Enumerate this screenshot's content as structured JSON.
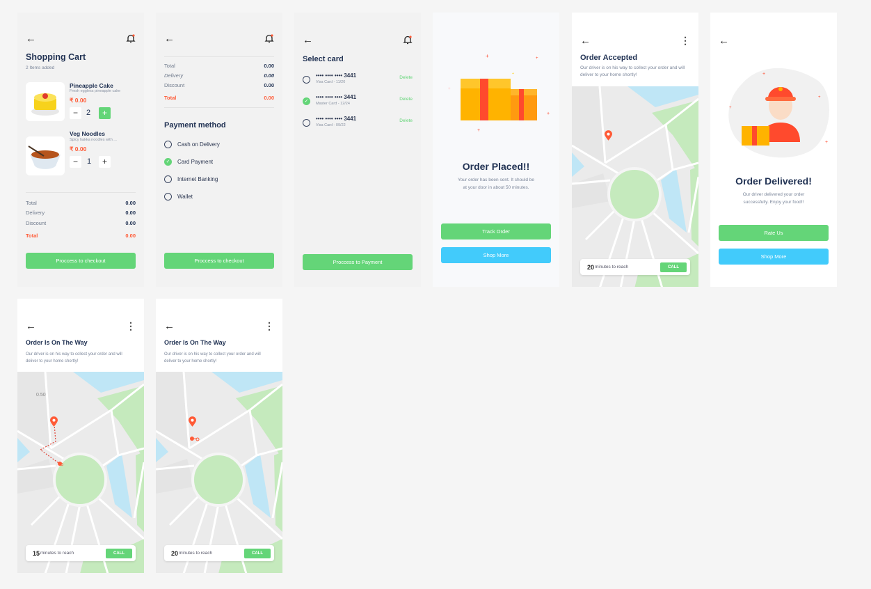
{
  "common": {
    "back": "←",
    "more": "⋮",
    "bell": "bell-icon"
  },
  "colors": {
    "accent_green": "#64d578",
    "accent_blue": "#42cbfb",
    "price_red": "#ff5a36",
    "text_dark": "#223354"
  },
  "cart": {
    "title": "Shopping Cart",
    "subtitle": "2 Items added",
    "items": [
      {
        "name": "Pineapple Cake",
        "desc": "Fresh eggless pineapple cake",
        "price": "₹ 0.00",
        "qty": "2"
      },
      {
        "name": "Veg Noodles",
        "desc": "Spicy hakka noodles with ...",
        "price": "₹ 0.00",
        "qty": "1"
      }
    ],
    "totals": [
      {
        "label": "Total",
        "value": "0.00"
      },
      {
        "label": "Delivery",
        "value": "0.00"
      },
      {
        "label": "Discount",
        "value": "0.00"
      },
      {
        "label": "Total",
        "value": "0.00"
      }
    ],
    "button": "Proccess to checkout",
    "minus": "−",
    "plus": "+"
  },
  "payment": {
    "totals": [
      {
        "label": "Total",
        "value": "0.00"
      },
      {
        "label": "Delivery",
        "value": "0.00"
      },
      {
        "label": "Discount",
        "value": "0.00"
      },
      {
        "label": "Total",
        "value": "0.00"
      }
    ],
    "title": "Payment method",
    "options": [
      "Cash on Delivery",
      "Card Payment",
      "Internet Banking",
      "Wallet"
    ],
    "selected": "Card Payment",
    "button": "Proccess to checkout"
  },
  "cards": {
    "title": "Select card",
    "items": [
      {
        "number": "•••• •••• •••• 3441",
        "meta": "Visa Card - 11/20",
        "selected": false
      },
      {
        "number": "•••• •••• •••• 3441",
        "meta": "Master Card - 12/24",
        "selected": true
      },
      {
        "number": "•••• •••• •••• 3441",
        "meta": "Visa Card - 09/22",
        "selected": false
      }
    ],
    "delete": "Delete",
    "button": "Proccess to Payment"
  },
  "placed": {
    "title": "Order Placed!!",
    "text1": "Your order has been sent. It should be",
    "text2": "at your door in about 50 minutes.",
    "track": "Track Order",
    "shop": "Shop More"
  },
  "accepted": {
    "title": "Order Accepted",
    "text1": "Our driver is on his way to collect your order and will",
    "text2": "deliver to your home shortly!",
    "minutes": "20",
    "reach": "minutes to reach",
    "call": "CALL"
  },
  "delivered": {
    "title": "Order Delivered!",
    "text1": "Our driver delivered your order",
    "text2": "successfully. Enjoy your food!!",
    "rate": "Rate Us",
    "shop": "Shop More"
  },
  "onway1": {
    "title": "Order Is On The Way",
    "text1": "Our driver is on his way to collect your order and will",
    "text2": "deliver to your home shortly!",
    "distance": "0.50",
    "minutes": "15",
    "reach": "minutes to reach",
    "call": "CALL"
  },
  "onway2": {
    "title": "Order Is On The Way",
    "text1": "Our driver is on his way to collect your order and will",
    "text2": "deliver to your home shortly!",
    "minutes": "20",
    "reach": "minutes to reach",
    "call": "CALL"
  }
}
